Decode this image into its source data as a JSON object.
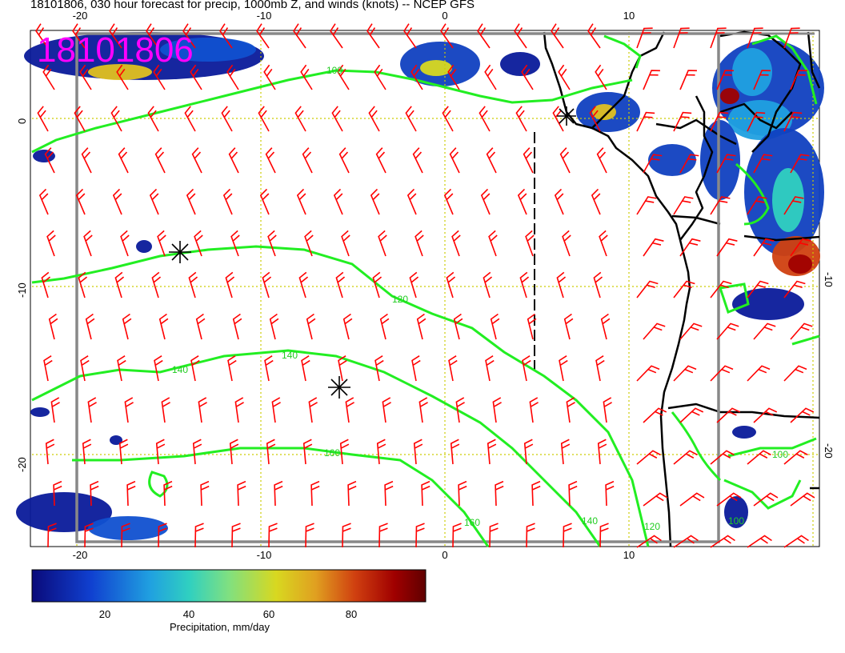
{
  "title": "18101806, 030 hour forecast for precip, 1000mb Z, and winds (knots) -- NCEP GFS",
  "stamp": "18101806",
  "axes": {
    "x_ticks_bottom": [
      "-20",
      "-10",
      "0",
      "10"
    ],
    "x_ticks_top": [
      "-20",
      "-10",
      "0",
      "10"
    ],
    "y_ticks_left": [
      "0",
      "-10",
      "-20"
    ],
    "y_ticks_right": [
      "-10",
      "-20"
    ]
  },
  "contour_labels": [
    "100",
    "120",
    "140",
    "140",
    "160",
    "160",
    "140",
    "120",
    "100",
    "100"
  ],
  "colorbar": {
    "label": "Precipitation, mm/day",
    "ticks": [
      "20",
      "40",
      "60",
      "80"
    ],
    "colors": [
      "#0a0a7a",
      "#1040d0",
      "#20a0e0",
      "#30d0c0",
      "#80e080",
      "#d8d820",
      "#e0a020",
      "#d04010",
      "#a00000",
      "#600000"
    ]
  },
  "colors": {
    "wind_barb": "#ff0000",
    "contour": "#22ee22",
    "grid": "#cccc00",
    "land": "#000000"
  }
}
